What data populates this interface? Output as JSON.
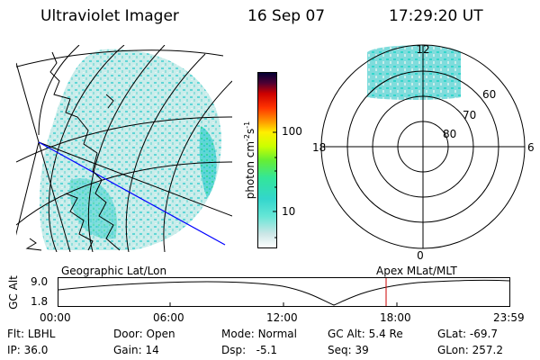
{
  "header": {
    "instrument": "Ultraviolet Imager",
    "date": "16 Sep 07",
    "time": "17:29:20 UT"
  },
  "geo_panel": {
    "label": "Geographic Lat/Lon",
    "colors": {
      "data": "#5fd6d6",
      "coast": "#000000",
      "terminator": "#0000ff"
    }
  },
  "colorbar": {
    "unit_label": "photon cm",
    "unit_sup1": "-2",
    "unit_mid": "s",
    "unit_sup2": "-1",
    "ticks": [
      "100",
      "10"
    ],
    "colors": [
      "#ffffff",
      "#cce6e6",
      "#66e6d6",
      "#33d6cc",
      "#33e699",
      "#66ee33",
      "#ccff00",
      "#ffee00",
      "#ff9900",
      "#ff3300",
      "#cc0000",
      "#990033",
      "#4d0033",
      "#000033"
    ]
  },
  "polar_panel": {
    "label": "Apex MLat/MLT",
    "mlt_labels": {
      "top": "12",
      "left": "18",
      "right": "6",
      "bottom": "0"
    },
    "lat_labels": [
      "60",
      "70",
      "80"
    ]
  },
  "time_axis": {
    "ylabel": "GC Alt",
    "yticks": [
      "9.0",
      "1.8"
    ],
    "xticks": [
      "00:00",
      "06:00",
      "12:00",
      "18:00",
      "23:59"
    ],
    "marker_color": "#cc0000"
  },
  "footer": {
    "row1": [
      {
        "key": "Flt:",
        "value": "LBHL"
      },
      {
        "key": "Door:",
        "value": "Open"
      },
      {
        "key": "Mode:",
        "value": "Normal"
      },
      {
        "key": "GC Alt:",
        "value": "5.4 Re"
      },
      {
        "key": "GLat:",
        "value": "-69.7"
      }
    ],
    "row2": [
      {
        "key": "IP:",
        "value": "36.0"
      },
      {
        "key": "Gain:",
        "value": "14"
      },
      {
        "key": "Dsp:",
        "value": "-5.1"
      },
      {
        "key": "Seq:",
        "value": "39"
      },
      {
        "key": "GLon:",
        "value": "257.2"
      }
    ]
  }
}
